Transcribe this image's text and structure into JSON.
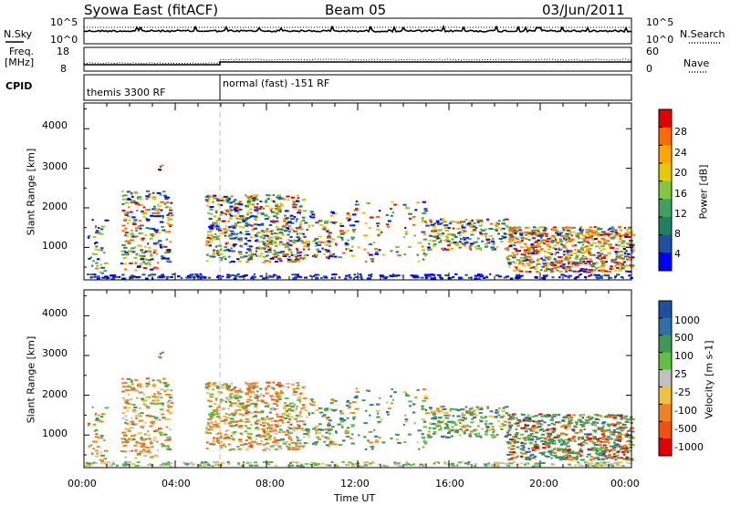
{
  "header": {
    "station": "Syowa East (fitACF)",
    "beam": "Beam 05",
    "date": "03/Jun/2011"
  },
  "top_panels": {
    "nsky_label": "N.Sky",
    "nsearch_label": "N.Search",
    "nsky_ticks": [
      "10^5",
      "10^0"
    ],
    "nsearch_ticks": [
      "10^5",
      "10^0"
    ],
    "freq_label": "Freq.",
    "freq_unit": "[MHz]",
    "freq_ticks": [
      "18",
      "8"
    ],
    "nave_ticks": [
      "60",
      "0"
    ],
    "nave_label": "Nave",
    "cpid_label": "CPID",
    "cpid_segments": [
      "themis 3300 RF",
      "normal (fast) -151 RF"
    ]
  },
  "chart_data": [
    {
      "type": "heatmap",
      "panel": "power",
      "ylabel": "Slant Range [km]",
      "y_ticks": [
        "1000",
        "2000",
        "3000",
        "4000"
      ],
      "ylim": [
        180,
        4650
      ],
      "xlim_hours": [
        0,
        24
      ],
      "colorbar_label": "Power [dB]",
      "colorbar_ticks": [
        "28",
        "24",
        "20",
        "16",
        "12",
        "8",
        "4"
      ],
      "colorbar_colors": [
        "#e00000",
        "#ff6a00",
        "#ffa500",
        "#e8c800",
        "#80c840",
        "#40a060",
        "#208060",
        "#2050a0",
        "#0000ff"
      ]
    },
    {
      "type": "heatmap",
      "panel": "velocity",
      "ylabel": "Slant Range [km]",
      "y_ticks": [
        "1000",
        "2000",
        "3000",
        "4000"
      ],
      "ylim": [
        180,
        4650
      ],
      "xlim_hours": [
        0,
        24
      ],
      "xlabel": "Time UT",
      "x_ticks": [
        "00:00",
        "04:00",
        "08:00",
        "12:00",
        "16:00",
        "20:00",
        "00:00"
      ],
      "colorbar_label": "Velocity [m s-1]",
      "colorbar_ticks": [
        "1000",
        "500",
        "100",
        "25",
        "-25",
        "-100",
        "-500",
        "-1000"
      ],
      "colorbar_colors": [
        "#1f4fa0",
        "#3070a8",
        "#409858",
        "#60c040",
        "#c0c0c0",
        "#f0c040",
        "#f08020",
        "#f05010",
        "#e00000"
      ]
    }
  ],
  "data_regions": [
    {
      "t0": 0.1,
      "t1": 0.9,
      "r0": 300,
      "r1": 1700,
      "n": 40,
      "p": 0.6
    },
    {
      "t0": 1.6,
      "t1": 3.8,
      "r0": 400,
      "r1": 2400,
      "n": 260,
      "p": 0.6
    },
    {
      "t0": 3.2,
      "t1": 3.4,
      "r0": 2900,
      "r1": 3100,
      "n": 4,
      "p": 0.7
    },
    {
      "t0": 5.3,
      "t1": 9.6,
      "r0": 600,
      "r1": 2300,
      "n": 600,
      "p": 0.6
    },
    {
      "t0": 9.6,
      "t1": 11.8,
      "r0": 700,
      "r1": 1900,
      "n": 120,
      "p": 0.5
    },
    {
      "t0": 11.8,
      "t1": 15.0,
      "r0": 600,
      "r1": 2200,
      "n": 90,
      "p": 0.5
    },
    {
      "t0": 15.0,
      "t1": 18.5,
      "r0": 900,
      "r1": 1700,
      "n": 220,
      "p": 0.4
    },
    {
      "t0": 18.5,
      "t1": 24.0,
      "r0": 350,
      "r1": 1500,
      "n": 700,
      "p": 0.3
    },
    {
      "t0": 0.0,
      "t1": 24.0,
      "r0": 190,
      "r1": 300,
      "n": 260,
      "p": 0.5
    }
  ]
}
